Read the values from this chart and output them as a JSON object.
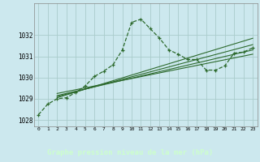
{
  "xlabel": "Graphe pression niveau de la mer (hPa)",
  "xlim": [
    -0.5,
    23.5
  ],
  "ylim": [
    1027.7,
    1033.5
  ],
  "yticks": [
    1028,
    1029,
    1030,
    1031,
    1032
  ],
  "xticks": [
    0,
    1,
    2,
    3,
    4,
    5,
    6,
    7,
    8,
    9,
    10,
    11,
    12,
    13,
    14,
    15,
    16,
    17,
    18,
    19,
    20,
    21,
    22,
    23
  ],
  "bg_color": "#cce8ee",
  "grid_color": "#aacccc",
  "line_color": "#2d6a2d",
  "label_bg": "#336633",
  "label_fg": "#ccffcc",
  "main_line_x": [
    0,
    1,
    2,
    3,
    4,
    5,
    6,
    7,
    8,
    9,
    10,
    11,
    12,
    13,
    14,
    15,
    16,
    17,
    18,
    19,
    20,
    21,
    22,
    23
  ],
  "main_line_y": [
    1028.25,
    1028.75,
    1029.0,
    1029.05,
    1029.3,
    1029.6,
    1030.05,
    1030.3,
    1030.6,
    1031.3,
    1032.6,
    1032.75,
    1032.3,
    1031.85,
    1031.3,
    1031.1,
    1030.85,
    1030.85,
    1030.35,
    1030.35,
    1030.55,
    1031.15,
    1031.2,
    1031.4
  ],
  "trend_lines": [
    {
      "x": [
        2,
        23
      ],
      "y": [
        1029.05,
        1031.85
      ]
    },
    {
      "x": [
        2,
        23
      ],
      "y": [
        1029.1,
        1031.55
      ]
    },
    {
      "x": [
        2,
        23
      ],
      "y": [
        1029.15,
        1031.3
      ]
    },
    {
      "x": [
        2,
        23
      ],
      "y": [
        1029.25,
        1031.1
      ]
    }
  ]
}
